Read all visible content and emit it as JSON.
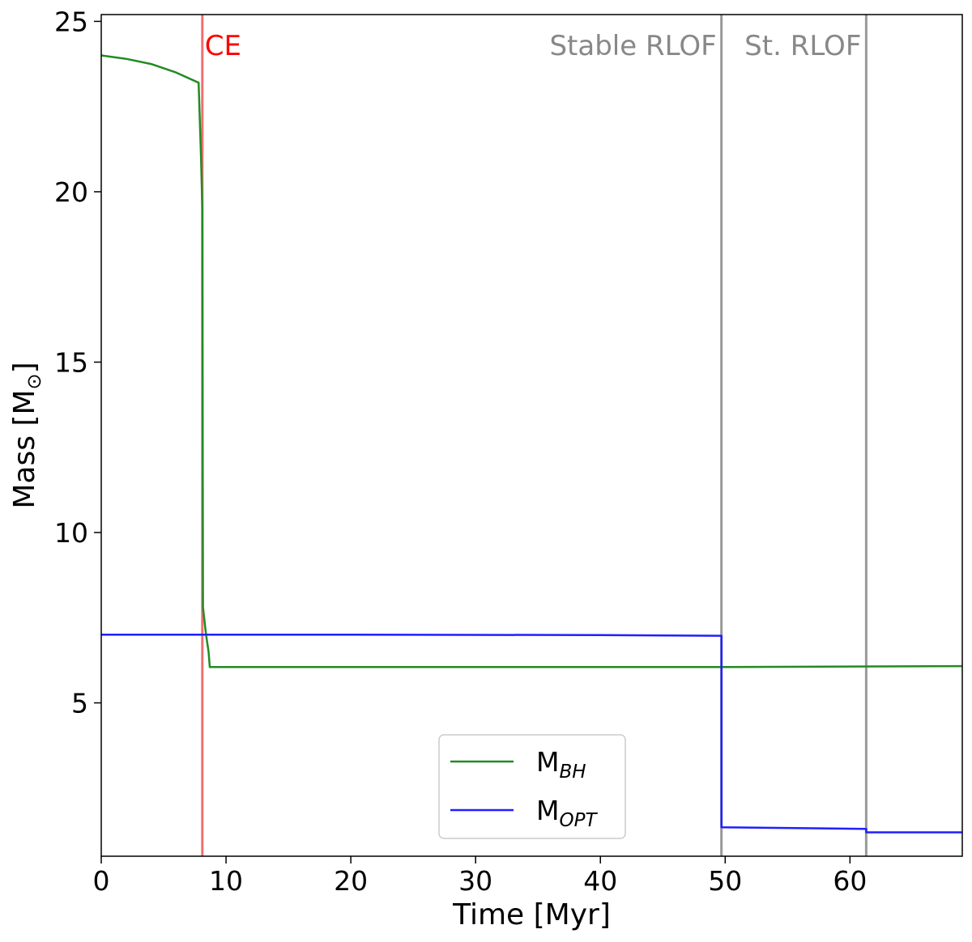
{
  "chart_data": {
    "type": "line",
    "xlabel": "Time [Myr]",
    "ylabel": "Mass [M",
    "ylabel_symbol": "⊙",
    "ylabel_close": "]",
    "xlim": [
      0,
      69
    ],
    "ylim": [
      0.5,
      25.2
    ],
    "xticks": [
      0,
      10,
      20,
      30,
      40,
      50,
      60
    ],
    "yticks": [
      5,
      10,
      15,
      20,
      25
    ],
    "grid": false,
    "legend_position": "bottom-center",
    "events": [
      {
        "label": "CE",
        "x": 8.1,
        "color": "#f26f6f",
        "text_color": "#ff0000",
        "label_side": "right"
      },
      {
        "label": "Stable RLOF",
        "x": 49.7,
        "color": "#999999",
        "text_color": "#888888",
        "label_side": "left"
      },
      {
        "label": "St. RLOF",
        "x": 61.3,
        "color": "#999999",
        "text_color": "#888888",
        "label_side": "left"
      }
    ],
    "series": [
      {
        "name": "M",
        "name_sub": "BH",
        "color": "#228b22",
        "points": [
          [
            0,
            24.0
          ],
          [
            2,
            23.9
          ],
          [
            4,
            23.75
          ],
          [
            6,
            23.5
          ],
          [
            7.8,
            23.2
          ],
          [
            8.0,
            21.0
          ],
          [
            8.1,
            19.5
          ],
          [
            8.15,
            7.8
          ],
          [
            8.4,
            7.0
          ],
          [
            8.6,
            6.5
          ],
          [
            8.7,
            6.05
          ],
          [
            20,
            6.05
          ],
          [
            40,
            6.05
          ],
          [
            50,
            6.05
          ],
          [
            69,
            6.08
          ]
        ]
      },
      {
        "name": "M",
        "name_sub": "OPT",
        "color": "#1f1fff",
        "points": [
          [
            0,
            7.0
          ],
          [
            20,
            7.0
          ],
          [
            40,
            6.99
          ],
          [
            49.7,
            6.97
          ],
          [
            49.7,
            1.35
          ],
          [
            61.3,
            1.3
          ],
          [
            61.3,
            1.2
          ],
          [
            69,
            1.2
          ]
        ]
      }
    ]
  }
}
